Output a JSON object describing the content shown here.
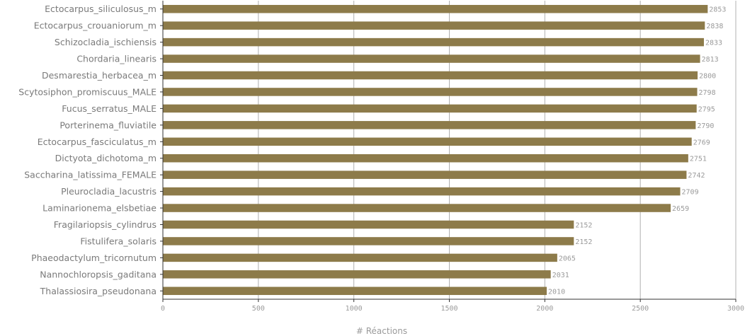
{
  "chart_data": {
    "type": "bar",
    "orientation": "horizontal",
    "categories": [
      "Ectocarpus_siliculosus_m",
      "Ectocarpus_crouaniorum_m",
      "Schizocladia_ischiensis",
      "Chordaria_linearis",
      "Desmarestia_herbacea_m",
      "Scytosiphon_promiscuus_MALE",
      "Fucus_serratus_MALE",
      "Porterinema_fluviatile",
      "Ectocarpus_fasciculatus_m",
      "Dictyota_dichotoma_m",
      "Saccharina_latissima_FEMALE",
      "Pleurocladia_lacustris",
      "Laminarionema_elsbetiae",
      "Fragilariopsis_cylindrus",
      "Fistulifera_solaris",
      "Phaeodactylum_tricornutum",
      "Nannochloropsis_gaditana",
      "Thalassiosira_pseudonana"
    ],
    "values": [
      2853,
      2838,
      2833,
      2813,
      2800,
      2798,
      2795,
      2790,
      2769,
      2751,
      2742,
      2709,
      2659,
      2152,
      2152,
      2065,
      2031,
      2010
    ],
    "xlabel": "# Réactions",
    "ylabel": "",
    "xlim": [
      0,
      3000
    ],
    "xticks": [
      0,
      500,
      1000,
      1500,
      2000,
      2500,
      3000
    ],
    "grid": "vertical",
    "bar_color": "#8d7b4a",
    "axis_color": "#333333",
    "grid_color": "#b0b0b0"
  }
}
